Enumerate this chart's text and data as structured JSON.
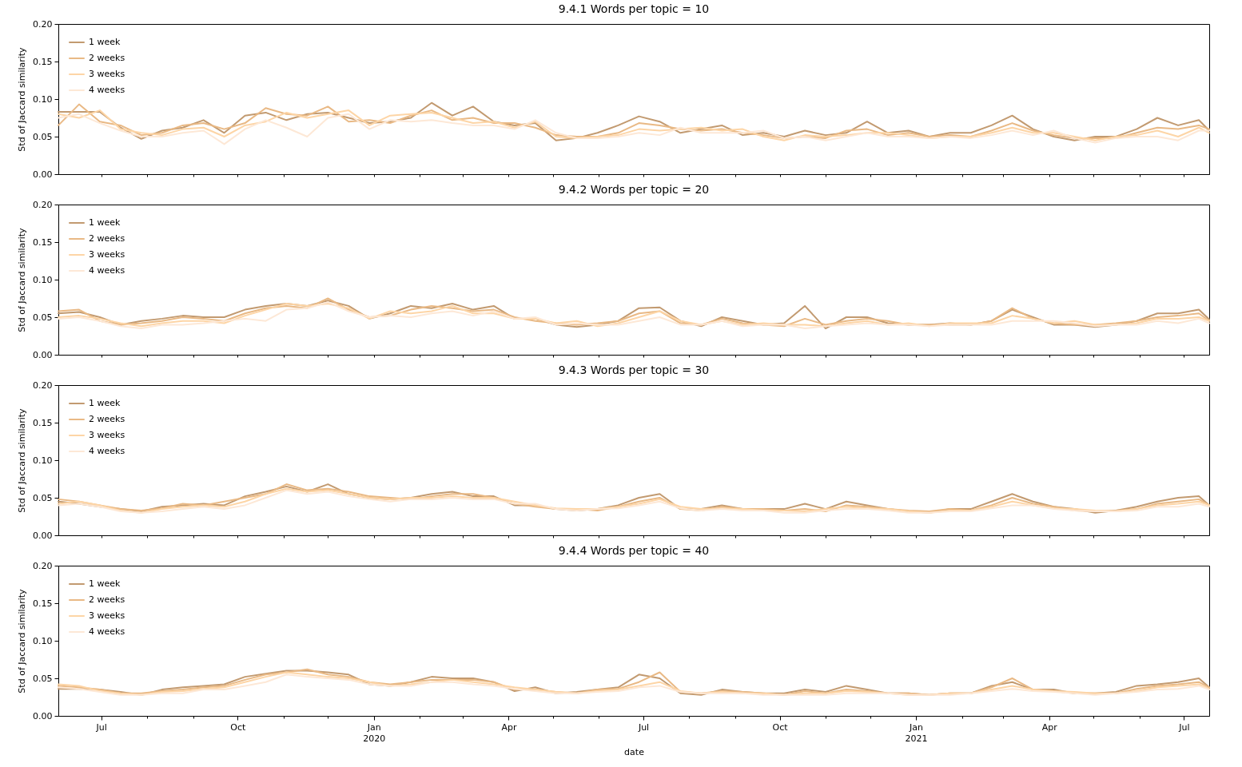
{
  "chart_data": [
    {
      "type": "line",
      "title": "9.4.1 Words per topic = 10",
      "ylabel": "Std of Jaccard similarity",
      "legend": "top left",
      "tick_labels": "y",
      "x": [
        "2019-06-02",
        "2019-06-16",
        "2019-06-30",
        "2019-07-14",
        "2019-07-28",
        "2019-08-11",
        "2019-08-25",
        "2019-09-08",
        "2019-09-22",
        "2019-10-06",
        "2019-10-20",
        "2019-11-03",
        "2019-11-17",
        "2019-12-01",
        "2019-12-15",
        "2019-12-29",
        "2020-01-12",
        "2020-01-26",
        "2020-02-09",
        "2020-02-23",
        "2020-03-08",
        "2020-03-22",
        "2020-04-05",
        "2020-04-19",
        "2020-05-03",
        "2020-05-17",
        "2020-05-31",
        "2020-06-14",
        "2020-06-28",
        "2020-07-12",
        "2020-07-26",
        "2020-08-09",
        "2020-08-23",
        "2020-09-06",
        "2020-09-20",
        "2020-10-04",
        "2020-10-18",
        "2020-11-01",
        "2020-11-15",
        "2020-11-29",
        "2020-12-13",
        "2020-12-27",
        "2021-01-10",
        "2021-01-24",
        "2021-02-07",
        "2021-02-21",
        "2021-03-07",
        "2021-03-21",
        "2021-04-04",
        "2021-04-18",
        "2021-05-02",
        "2021-05-16",
        "2021-05-30",
        "2021-06-13",
        "2021-06-27",
        "2021-07-11",
        "2021-07-18"
      ],
      "xlim": [
        "2019-06-02",
        "2021-07-18"
      ],
      "ylim": [
        0,
        0.2
      ],
      "xticks": [
        {
          "value": "2019-07-01",
          "label": null
        },
        {
          "value": "2019-08-01",
          "label": null
        },
        {
          "value": "2019-09-01",
          "label": null
        },
        {
          "value": "2019-10-01",
          "label": null
        },
        {
          "value": "2019-11-01",
          "label": null
        },
        {
          "value": "2019-12-01",
          "label": null
        },
        {
          "value": "2020-01-01",
          "label": null
        },
        {
          "value": "2020-02-01",
          "label": null
        },
        {
          "value": "2020-03-01",
          "label": null
        },
        {
          "value": "2020-04-01",
          "label": null
        },
        {
          "value": "2020-05-01",
          "label": null
        },
        {
          "value": "2020-06-01",
          "label": null
        },
        {
          "value": "2020-07-01",
          "label": null
        },
        {
          "value": "2020-08-01",
          "label": null
        },
        {
          "value": "2020-09-01",
          "label": null
        },
        {
          "value": "2020-10-01",
          "label": null
        },
        {
          "value": "2020-11-01",
          "label": null
        },
        {
          "value": "2020-12-01",
          "label": null
        },
        {
          "value": "2021-01-01",
          "label": null
        },
        {
          "value": "2021-02-01",
          "label": null
        },
        {
          "value": "2021-03-01",
          "label": null
        },
        {
          "value": "2021-04-01",
          "label": null
        },
        {
          "value": "2021-05-01",
          "label": null
        },
        {
          "value": "2021-06-01",
          "label": null
        },
        {
          "value": "2021-07-01",
          "label": null
        }
      ],
      "yticks": [
        {
          "value": 0,
          "label": "0.00"
        },
        {
          "value": 0.05,
          "label": "0.05"
        },
        {
          "value": 0.1,
          "label": "0.10"
        },
        {
          "value": 0.15,
          "label": "0.15"
        },
        {
          "value": 0.2,
          "label": "0.20"
        }
      ],
      "series": [
        {
          "name": "1 week",
          "color": "#c29a70",
          "values": [
            0.083,
            0.083,
            0.083,
            0.062,
            0.047,
            0.058,
            0.062,
            0.072,
            0.055,
            0.078,
            0.082,
            0.072,
            0.08,
            0.082,
            0.075,
            0.068,
            0.07,
            0.075,
            0.095,
            0.078,
            0.09,
            0.07,
            0.065,
            0.068,
            0.045,
            0.048,
            0.055,
            0.065,
            0.077,
            0.07,
            0.055,
            0.06,
            0.065,
            0.052,
            0.055,
            0.05,
            0.058,
            0.052,
            0.055,
            0.07,
            0.055,
            0.058,
            0.05,
            0.055,
            0.055,
            0.065,
            0.078,
            0.06,
            0.05,
            0.045,
            0.05,
            0.05,
            0.06,
            0.075,
            0.065,
            0.072,
            0.058
          ]
        },
        {
          "name": "2 weeks",
          "color": "#e9b985",
          "values": [
            0.065,
            0.093,
            0.07,
            0.065,
            0.052,
            0.055,
            0.065,
            0.068,
            0.06,
            0.068,
            0.088,
            0.08,
            0.078,
            0.09,
            0.07,
            0.072,
            0.068,
            0.078,
            0.085,
            0.072,
            0.075,
            0.068,
            0.068,
            0.062,
            0.052,
            0.05,
            0.05,
            0.055,
            0.068,
            0.065,
            0.06,
            0.058,
            0.06,
            0.055,
            0.052,
            0.048,
            0.05,
            0.048,
            0.058,
            0.06,
            0.052,
            0.055,
            0.05,
            0.052,
            0.05,
            0.058,
            0.068,
            0.058,
            0.052,
            0.048,
            0.048,
            0.048,
            0.055,
            0.062,
            0.06,
            0.065,
            0.06
          ]
        },
        {
          "name": "3 weeks",
          "color": "#fdd5a6",
          "values": [
            0.08,
            0.075,
            0.085,
            0.06,
            0.055,
            0.052,
            0.06,
            0.062,
            0.05,
            0.065,
            0.07,
            0.082,
            0.075,
            0.08,
            0.085,
            0.065,
            0.078,
            0.08,
            0.082,
            0.075,
            0.068,
            0.07,
            0.062,
            0.07,
            0.05,
            0.048,
            0.05,
            0.052,
            0.06,
            0.058,
            0.06,
            0.062,
            0.058,
            0.06,
            0.05,
            0.045,
            0.052,
            0.05,
            0.052,
            0.055,
            0.055,
            0.052,
            0.048,
            0.05,
            0.05,
            0.055,
            0.062,
            0.055,
            0.055,
            0.05,
            0.045,
            0.05,
            0.052,
            0.058,
            0.05,
            0.062,
            0.055
          ]
        },
        {
          "name": "4 weeks",
          "color": "#fde8d6",
          "values": [
            0.075,
            0.08,
            0.068,
            0.058,
            0.05,
            0.05,
            0.055,
            0.058,
            0.04,
            0.06,
            0.072,
            0.062,
            0.05,
            0.075,
            0.08,
            0.06,
            0.072,
            0.07,
            0.072,
            0.068,
            0.065,
            0.065,
            0.06,
            0.072,
            0.055,
            0.048,
            0.048,
            0.05,
            0.055,
            0.052,
            0.062,
            0.055,
            0.055,
            0.055,
            0.058,
            0.048,
            0.05,
            0.045,
            0.05,
            0.055,
            0.05,
            0.05,
            0.048,
            0.05,
            0.048,
            0.052,
            0.058,
            0.052,
            0.058,
            0.048,
            0.042,
            0.048,
            0.05,
            0.05,
            0.045,
            0.058,
            0.058
          ]
        }
      ]
    },
    {
      "type": "line",
      "title": "9.4.2 Words per topic = 20",
      "ylabel": "Std of Jaccard similarity",
      "legend": "top left",
      "tick_labels": "y",
      "x": [
        "2019-06-02",
        "2019-06-16",
        "2019-06-30",
        "2019-07-14",
        "2019-07-28",
        "2019-08-11",
        "2019-08-25",
        "2019-09-08",
        "2019-09-22",
        "2019-10-06",
        "2019-10-20",
        "2019-11-03",
        "2019-11-17",
        "2019-12-01",
        "2019-12-15",
        "2019-12-29",
        "2020-01-12",
        "2020-01-26",
        "2020-02-09",
        "2020-02-23",
        "2020-03-08",
        "2020-03-22",
        "2020-04-05",
        "2020-04-19",
        "2020-05-03",
        "2020-05-17",
        "2020-05-31",
        "2020-06-14",
        "2020-06-28",
        "2020-07-12",
        "2020-07-26",
        "2020-08-09",
        "2020-08-23",
        "2020-09-06",
        "2020-09-20",
        "2020-10-04",
        "2020-10-18",
        "2020-11-01",
        "2020-11-15",
        "2020-11-29",
        "2020-12-13",
        "2020-12-27",
        "2021-01-10",
        "2021-01-24",
        "2021-02-07",
        "2021-02-21",
        "2021-03-07",
        "2021-03-21",
        "2021-04-04",
        "2021-04-18",
        "2021-05-02",
        "2021-05-16",
        "2021-05-30",
        "2021-06-13",
        "2021-06-27",
        "2021-07-11",
        "2021-07-18"
      ],
      "xlim": [
        "2019-06-02",
        "2021-07-18"
      ],
      "ylim": [
        0,
        0.2
      ],
      "xticks": [
        {
          "value": "2019-07-01",
          "label": null
        },
        {
          "value": "2019-08-01",
          "label": null
        },
        {
          "value": "2019-09-01",
          "label": null
        },
        {
          "value": "2019-10-01",
          "label": null
        },
        {
          "value": "2019-11-01",
          "label": null
        },
        {
          "value": "2019-12-01",
          "label": null
        },
        {
          "value": "2020-01-01",
          "label": null
        },
        {
          "value": "2020-02-01",
          "label": null
        },
        {
          "value": "2020-03-01",
          "label": null
        },
        {
          "value": "2020-04-01",
          "label": null
        },
        {
          "value": "2020-05-01",
          "label": null
        },
        {
          "value": "2020-06-01",
          "label": null
        },
        {
          "value": "2020-07-01",
          "label": null
        },
        {
          "value": "2020-08-01",
          "label": null
        },
        {
          "value": "2020-09-01",
          "label": null
        },
        {
          "value": "2020-10-01",
          "label": null
        },
        {
          "value": "2020-11-01",
          "label": null
        },
        {
          "value": "2020-12-01",
          "label": null
        },
        {
          "value": "2021-01-01",
          "label": null
        },
        {
          "value": "2021-02-01",
          "label": null
        },
        {
          "value": "2021-03-01",
          "label": null
        },
        {
          "value": "2021-04-01",
          "label": null
        },
        {
          "value": "2021-05-01",
          "label": null
        },
        {
          "value": "2021-06-01",
          "label": null
        },
        {
          "value": "2021-07-01",
          "label": null
        }
      ],
      "yticks": [
        {
          "value": 0,
          "label": "0.00"
        },
        {
          "value": 0.05,
          "label": "0.05"
        },
        {
          "value": 0.1,
          "label": "0.10"
        },
        {
          "value": 0.15,
          "label": "0.15"
        },
        {
          "value": 0.2,
          "label": "0.20"
        }
      ],
      "series": [
        {
          "name": "1 week",
          "color": "#c29a70",
          "values": [
            0.055,
            0.057,
            0.05,
            0.04,
            0.045,
            0.048,
            0.052,
            0.05,
            0.05,
            0.06,
            0.065,
            0.068,
            0.065,
            0.072,
            0.065,
            0.048,
            0.055,
            0.065,
            0.062,
            0.068,
            0.06,
            0.065,
            0.048,
            0.048,
            0.04,
            0.037,
            0.04,
            0.045,
            0.062,
            0.063,
            0.045,
            0.038,
            0.05,
            0.045,
            0.04,
            0.042,
            0.065,
            0.035,
            0.05,
            0.05,
            0.042,
            0.04,
            0.04,
            0.042,
            0.04,
            0.045,
            0.06,
            0.05,
            0.04,
            0.04,
            0.037,
            0.04,
            0.045,
            0.055,
            0.055,
            0.06,
            0.047
          ]
        },
        {
          "name": "2 weeks",
          "color": "#e9b985",
          "values": [
            0.058,
            0.06,
            0.045,
            0.04,
            0.042,
            0.045,
            0.05,
            0.048,
            0.045,
            0.055,
            0.062,
            0.065,
            0.062,
            0.075,
            0.06,
            0.05,
            0.052,
            0.06,
            0.065,
            0.062,
            0.058,
            0.06,
            0.05,
            0.045,
            0.042,
            0.04,
            0.042,
            0.045,
            0.055,
            0.058,
            0.042,
            0.04,
            0.048,
            0.042,
            0.04,
            0.038,
            0.048,
            0.04,
            0.045,
            0.048,
            0.045,
            0.04,
            0.04,
            0.04,
            0.04,
            0.045,
            0.062,
            0.048,
            0.042,
            0.04,
            0.04,
            0.042,
            0.045,
            0.05,
            0.052,
            0.055,
            0.045
          ]
        },
        {
          "name": "3 weeks",
          "color": "#fdd5a6",
          "values": [
            0.05,
            0.052,
            0.048,
            0.042,
            0.038,
            0.042,
            0.045,
            0.045,
            0.042,
            0.052,
            0.06,
            0.068,
            0.065,
            0.068,
            0.062,
            0.048,
            0.058,
            0.055,
            0.058,
            0.065,
            0.055,
            0.055,
            0.048,
            0.048,
            0.042,
            0.045,
            0.038,
            0.042,
            0.05,
            0.058,
            0.045,
            0.04,
            0.045,
            0.04,
            0.042,
            0.04,
            0.04,
            0.038,
            0.042,
            0.045,
            0.04,
            0.042,
            0.038,
            0.042,
            0.042,
            0.042,
            0.052,
            0.048,
            0.042,
            0.045,
            0.04,
            0.04,
            0.042,
            0.048,
            0.048,
            0.05,
            0.045
          ]
        },
        {
          "name": "4 weeks",
          "color": "#fde8d6",
          "values": [
            0.048,
            0.05,
            0.045,
            0.038,
            0.035,
            0.04,
            0.04,
            0.042,
            0.045,
            0.048,
            0.045,
            0.06,
            0.062,
            0.07,
            0.058,
            0.05,
            0.052,
            0.05,
            0.055,
            0.058,
            0.052,
            0.058,
            0.048,
            0.05,
            0.04,
            0.042,
            0.04,
            0.04,
            0.045,
            0.05,
            0.04,
            0.04,
            0.045,
            0.038,
            0.04,
            0.04,
            0.035,
            0.038,
            0.04,
            0.042,
            0.04,
            0.04,
            0.038,
            0.04,
            0.04,
            0.04,
            0.045,
            0.045,
            0.045,
            0.042,
            0.038,
            0.04,
            0.04,
            0.045,
            0.042,
            0.048,
            0.042
          ]
        }
      ]
    },
    {
      "type": "line",
      "title": "9.4.3 Words per topic = 30",
      "ylabel": "Std of Jaccard similarity",
      "legend": "top left",
      "tick_labels": "y",
      "x": [
        "2019-06-02",
        "2019-06-16",
        "2019-06-30",
        "2019-07-14",
        "2019-07-28",
        "2019-08-11",
        "2019-08-25",
        "2019-09-08",
        "2019-09-22",
        "2019-10-06",
        "2019-10-20",
        "2019-11-03",
        "2019-11-17",
        "2019-12-01",
        "2019-12-15",
        "2019-12-29",
        "2020-01-12",
        "2020-01-26",
        "2020-02-09",
        "2020-02-23",
        "2020-03-08",
        "2020-03-22",
        "2020-04-05",
        "2020-04-19",
        "2020-05-03",
        "2020-05-17",
        "2020-05-31",
        "2020-06-14",
        "2020-06-28",
        "2020-07-12",
        "2020-07-26",
        "2020-08-09",
        "2020-08-23",
        "2020-09-06",
        "2020-09-20",
        "2020-10-04",
        "2020-10-18",
        "2020-11-01",
        "2020-11-15",
        "2020-11-29",
        "2020-12-13",
        "2020-12-27",
        "2021-01-10",
        "2021-01-24",
        "2021-02-07",
        "2021-02-21",
        "2021-03-07",
        "2021-03-21",
        "2021-04-04",
        "2021-04-18",
        "2021-05-02",
        "2021-05-16",
        "2021-05-30",
        "2021-06-13",
        "2021-06-27",
        "2021-07-11",
        "2021-07-18"
      ],
      "xlim": [
        "2019-06-02",
        "2021-07-18"
      ],
      "ylim": [
        0,
        0.2
      ],
      "xticks": [
        {
          "value": "2019-07-01",
          "label": null
        },
        {
          "value": "2019-08-01",
          "label": null
        },
        {
          "value": "2019-09-01",
          "label": null
        },
        {
          "value": "2019-10-01",
          "label": null
        },
        {
          "value": "2019-11-01",
          "label": null
        },
        {
          "value": "2019-12-01",
          "label": null
        },
        {
          "value": "2020-01-01",
          "label": null
        },
        {
          "value": "2020-02-01",
          "label": null
        },
        {
          "value": "2020-03-01",
          "label": null
        },
        {
          "value": "2020-04-01",
          "label": null
        },
        {
          "value": "2020-05-01",
          "label": null
        },
        {
          "value": "2020-06-01",
          "label": null
        },
        {
          "value": "2020-07-01",
          "label": null
        },
        {
          "value": "2020-08-01",
          "label": null
        },
        {
          "value": "2020-09-01",
          "label": null
        },
        {
          "value": "2020-10-01",
          "label": null
        },
        {
          "value": "2020-11-01",
          "label": null
        },
        {
          "value": "2020-12-01",
          "label": null
        },
        {
          "value": "2021-01-01",
          "label": null
        },
        {
          "value": "2021-02-01",
          "label": null
        },
        {
          "value": "2021-03-01",
          "label": null
        },
        {
          "value": "2021-04-01",
          "label": null
        },
        {
          "value": "2021-05-01",
          "label": null
        },
        {
          "value": "2021-06-01",
          "label": null
        },
        {
          "value": "2021-07-01",
          "label": null
        }
      ],
      "yticks": [
        {
          "value": 0,
          "label": "0.00"
        },
        {
          "value": 0.05,
          "label": "0.05"
        },
        {
          "value": 0.1,
          "label": "0.10"
        },
        {
          "value": 0.15,
          "label": "0.15"
        },
        {
          "value": 0.2,
          "label": "0.20"
        }
      ],
      "series": [
        {
          "name": "1 week",
          "color": "#c29a70",
          "values": [
            0.045,
            0.042,
            0.038,
            0.035,
            0.032,
            0.038,
            0.04,
            0.042,
            0.04,
            0.052,
            0.058,
            0.065,
            0.058,
            0.068,
            0.055,
            0.05,
            0.048,
            0.05,
            0.055,
            0.058,
            0.052,
            0.052,
            0.04,
            0.04,
            0.035,
            0.033,
            0.035,
            0.04,
            0.05,
            0.055,
            0.035,
            0.035,
            0.04,
            0.035,
            0.035,
            0.035,
            0.042,
            0.035,
            0.045,
            0.04,
            0.035,
            0.032,
            0.03,
            0.035,
            0.035,
            0.045,
            0.055,
            0.045,
            0.038,
            0.035,
            0.03,
            0.033,
            0.038,
            0.045,
            0.05,
            0.052,
            0.04
          ]
        },
        {
          "name": "2 weeks",
          "color": "#e9b985",
          "values": [
            0.048,
            0.045,
            0.04,
            0.035,
            0.033,
            0.036,
            0.042,
            0.04,
            0.045,
            0.05,
            0.055,
            0.068,
            0.06,
            0.062,
            0.058,
            0.052,
            0.05,
            0.048,
            0.052,
            0.055,
            0.055,
            0.05,
            0.042,
            0.038,
            0.035,
            0.035,
            0.033,
            0.038,
            0.045,
            0.05,
            0.035,
            0.033,
            0.038,
            0.035,
            0.035,
            0.033,
            0.035,
            0.032,
            0.04,
            0.038,
            0.035,
            0.033,
            0.032,
            0.035,
            0.033,
            0.04,
            0.05,
            0.042,
            0.038,
            0.033,
            0.032,
            0.033,
            0.035,
            0.042,
            0.045,
            0.048,
            0.04
          ]
        },
        {
          "name": "3 weeks",
          "color": "#fdd5a6",
          "values": [
            0.042,
            0.045,
            0.04,
            0.033,
            0.03,
            0.035,
            0.038,
            0.04,
            0.038,
            0.045,
            0.055,
            0.062,
            0.058,
            0.06,
            0.055,
            0.05,
            0.048,
            0.05,
            0.05,
            0.052,
            0.05,
            0.05,
            0.045,
            0.04,
            0.036,
            0.035,
            0.035,
            0.038,
            0.042,
            0.048,
            0.038,
            0.035,
            0.036,
            0.035,
            0.033,
            0.033,
            0.032,
            0.035,
            0.038,
            0.036,
            0.035,
            0.032,
            0.03,
            0.033,
            0.033,
            0.038,
            0.045,
            0.04,
            0.036,
            0.035,
            0.033,
            0.032,
            0.035,
            0.04,
            0.042,
            0.045,
            0.04
          ]
        },
        {
          "name": "4 weeks",
          "color": "#fde8d6",
          "values": [
            0.04,
            0.042,
            0.038,
            0.032,
            0.03,
            0.032,
            0.035,
            0.038,
            0.035,
            0.04,
            0.05,
            0.06,
            0.055,
            0.058,
            0.052,
            0.048,
            0.045,
            0.048,
            0.048,
            0.05,
            0.048,
            0.048,
            0.042,
            0.042,
            0.035,
            0.033,
            0.035,
            0.036,
            0.04,
            0.045,
            0.036,
            0.033,
            0.035,
            0.033,
            0.033,
            0.03,
            0.03,
            0.033,
            0.035,
            0.035,
            0.033,
            0.03,
            0.03,
            0.032,
            0.032,
            0.036,
            0.04,
            0.04,
            0.035,
            0.033,
            0.032,
            0.032,
            0.033,
            0.038,
            0.038,
            0.042,
            0.038
          ]
        }
      ]
    },
    {
      "type": "line",
      "title": "9.4.4 Words per topic = 40",
      "ylabel": "Std of Jaccard similarity",
      "xlabel": "date",
      "legend": "top left",
      "x": [
        "2019-06-02",
        "2019-06-16",
        "2019-06-30",
        "2019-07-14",
        "2019-07-28",
        "2019-08-11",
        "2019-08-25",
        "2019-09-08",
        "2019-09-22",
        "2019-10-06",
        "2019-10-20",
        "2019-11-03",
        "2019-11-17",
        "2019-12-01",
        "2019-12-15",
        "2019-12-29",
        "2020-01-12",
        "2020-01-26",
        "2020-02-09",
        "2020-02-23",
        "2020-03-08",
        "2020-03-22",
        "2020-04-05",
        "2020-04-19",
        "2020-05-03",
        "2020-05-17",
        "2020-05-31",
        "2020-06-14",
        "2020-06-28",
        "2020-07-12",
        "2020-07-26",
        "2020-08-09",
        "2020-08-23",
        "2020-09-06",
        "2020-09-20",
        "2020-10-04",
        "2020-10-18",
        "2020-11-01",
        "2020-11-15",
        "2020-11-29",
        "2020-12-13",
        "2020-12-27",
        "2021-01-10",
        "2021-01-24",
        "2021-02-07",
        "2021-02-21",
        "2021-03-07",
        "2021-03-21",
        "2021-04-04",
        "2021-04-18",
        "2021-05-02",
        "2021-05-16",
        "2021-05-30",
        "2021-06-13",
        "2021-06-27",
        "2021-07-11",
        "2021-07-18"
      ],
      "xlim": [
        "2019-06-02",
        "2021-07-18"
      ],
      "ylim": [
        0,
        0.2
      ],
      "xticks": [
        {
          "value": "2019-07-01",
          "label": "Jul"
        },
        {
          "value": "2019-08-01",
          "label": null
        },
        {
          "value": "2019-09-01",
          "label": null
        },
        {
          "value": "2019-10-01",
          "label": "Oct"
        },
        {
          "value": "2019-11-01",
          "label": null
        },
        {
          "value": "2019-12-01",
          "label": null
        },
        {
          "value": "2020-01-01",
          "label": "Jan\n2020"
        },
        {
          "value": "2020-02-01",
          "label": null
        },
        {
          "value": "2020-03-01",
          "label": null
        },
        {
          "value": "2020-04-01",
          "label": "Apr"
        },
        {
          "value": "2020-05-01",
          "label": null
        },
        {
          "value": "2020-06-01",
          "label": null
        },
        {
          "value": "2020-07-01",
          "label": "Jul"
        },
        {
          "value": "2020-08-01",
          "label": null
        },
        {
          "value": "2020-09-01",
          "label": null
        },
        {
          "value": "2020-10-01",
          "label": "Oct"
        },
        {
          "value": "2020-11-01",
          "label": null
        },
        {
          "value": "2020-12-01",
          "label": null
        },
        {
          "value": "2021-01-01",
          "label": "Jan\n2021"
        },
        {
          "value": "2021-02-01",
          "label": null
        },
        {
          "value": "2021-03-01",
          "label": null
        },
        {
          "value": "2021-04-01",
          "label": "Apr"
        },
        {
          "value": "2021-05-01",
          "label": null
        },
        {
          "value": "2021-06-01",
          "label": null
        },
        {
          "value": "2021-07-01",
          "label": "Jul"
        }
      ],
      "yticks": [
        {
          "value": 0,
          "label": "0.00"
        },
        {
          "value": 0.05,
          "label": "0.05"
        },
        {
          "value": 0.1,
          "label": "0.10"
        },
        {
          "value": 0.15,
          "label": "0.15"
        },
        {
          "value": 0.2,
          "label": "0.20"
        }
      ],
      "series": [
        {
          "name": "1 week",
          "color": "#c29a70",
          "values": [
            0.036,
            0.036,
            0.035,
            0.032,
            0.028,
            0.035,
            0.038,
            0.04,
            0.042,
            0.052,
            0.056,
            0.06,
            0.06,
            0.058,
            0.055,
            0.042,
            0.04,
            0.045,
            0.052,
            0.05,
            0.05,
            0.045,
            0.033,
            0.038,
            0.03,
            0.032,
            0.035,
            0.038,
            0.055,
            0.05,
            0.03,
            0.028,
            0.035,
            0.032,
            0.03,
            0.03,
            0.035,
            0.032,
            0.04,
            0.035,
            0.03,
            0.03,
            0.028,
            0.03,
            0.03,
            0.04,
            0.045,
            0.035,
            0.035,
            0.03,
            0.03,
            0.032,
            0.04,
            0.042,
            0.045,
            0.05,
            0.038
          ]
        },
        {
          "name": "2 weeks",
          "color": "#e9b985",
          "values": [
            0.04,
            0.038,
            0.035,
            0.03,
            0.03,
            0.033,
            0.035,
            0.038,
            0.04,
            0.048,
            0.055,
            0.058,
            0.062,
            0.055,
            0.052,
            0.045,
            0.042,
            0.045,
            0.048,
            0.048,
            0.048,
            0.045,
            0.035,
            0.035,
            0.032,
            0.03,
            0.035,
            0.036,
            0.045,
            0.058,
            0.032,
            0.03,
            0.033,
            0.032,
            0.03,
            0.028,
            0.033,
            0.03,
            0.035,
            0.033,
            0.03,
            0.03,
            0.028,
            0.03,
            0.03,
            0.038,
            0.05,
            0.035,
            0.033,
            0.03,
            0.03,
            0.03,
            0.036,
            0.04,
            0.042,
            0.045,
            0.038
          ]
        },
        {
          "name": "3 weeks",
          "color": "#fdd5a6",
          "values": [
            0.042,
            0.04,
            0.033,
            0.03,
            0.028,
            0.032,
            0.033,
            0.036,
            0.038,
            0.045,
            0.052,
            0.058,
            0.055,
            0.052,
            0.05,
            0.045,
            0.04,
            0.042,
            0.045,
            0.048,
            0.045,
            0.042,
            0.038,
            0.035,
            0.032,
            0.03,
            0.033,
            0.035,
            0.04,
            0.045,
            0.033,
            0.03,
            0.032,
            0.03,
            0.03,
            0.028,
            0.03,
            0.03,
            0.033,
            0.032,
            0.03,
            0.028,
            0.028,
            0.03,
            0.03,
            0.035,
            0.04,
            0.035,
            0.033,
            0.032,
            0.03,
            0.03,
            0.033,
            0.038,
            0.04,
            0.042,
            0.036
          ]
        },
        {
          "name": "4 weeks",
          "color": "#fde8d6",
          "values": [
            0.038,
            0.036,
            0.032,
            0.028,
            0.028,
            0.03,
            0.03,
            0.035,
            0.035,
            0.04,
            0.045,
            0.055,
            0.052,
            0.05,
            0.048,
            0.042,
            0.04,
            0.04,
            0.045,
            0.045,
            0.042,
            0.04,
            0.036,
            0.033,
            0.03,
            0.03,
            0.032,
            0.033,
            0.038,
            0.04,
            0.032,
            0.03,
            0.03,
            0.03,
            0.028,
            0.028,
            0.028,
            0.028,
            0.03,
            0.03,
            0.03,
            0.028,
            0.028,
            0.028,
            0.03,
            0.033,
            0.036,
            0.033,
            0.032,
            0.03,
            0.028,
            0.03,
            0.032,
            0.035,
            0.036,
            0.04,
            0.035
          ]
        }
      ]
    }
  ]
}
